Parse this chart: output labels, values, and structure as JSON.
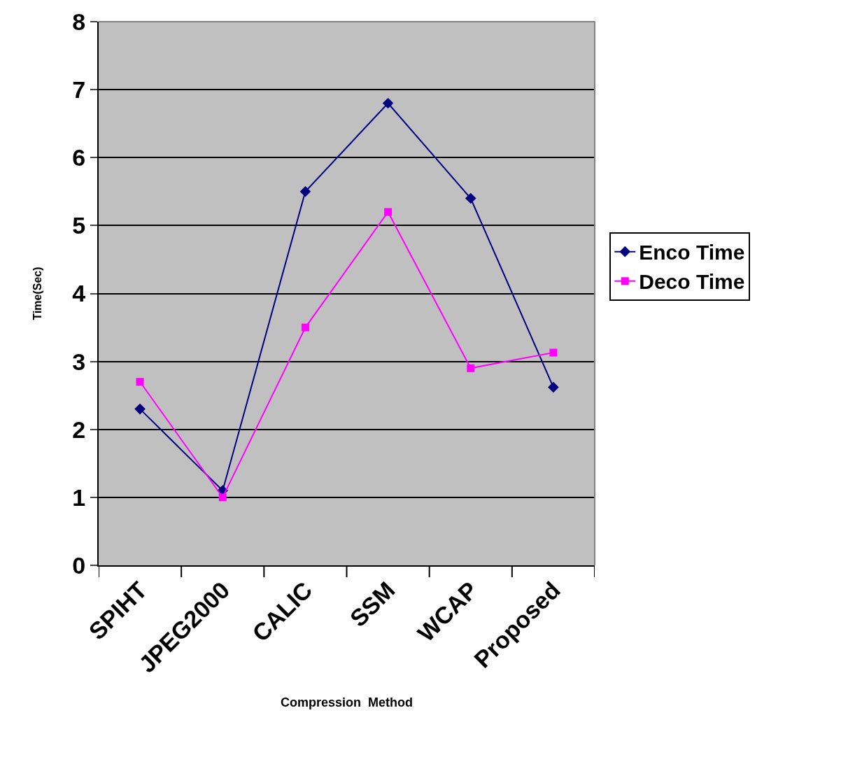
{
  "chart_data": {
    "type": "line",
    "xlabel": "Compression  Method",
    "ylabel": "Time(Sec)",
    "categories": [
      "SPIHT",
      "JPEG2000",
      "CALIC",
      "SSM",
      "WCAP",
      "Proposed"
    ],
    "series": [
      {
        "name": "Enco Time",
        "color": "#000080",
        "marker": "diamond",
        "values": [
          2.3,
          1.1,
          5.5,
          6.8,
          5.4,
          2.62
        ]
      },
      {
        "name": "Deco Time",
        "color": "#ff00ff",
        "marker": "square",
        "values": [
          2.7,
          1.0,
          3.5,
          5.2,
          2.9,
          3.13
        ]
      }
    ],
    "ylim": [
      0,
      8
    ],
    "yticks": [
      0,
      1,
      2,
      3,
      4,
      5,
      6,
      7,
      8
    ],
    "grid": "y",
    "legend": "right",
    "line_style": "solid"
  }
}
